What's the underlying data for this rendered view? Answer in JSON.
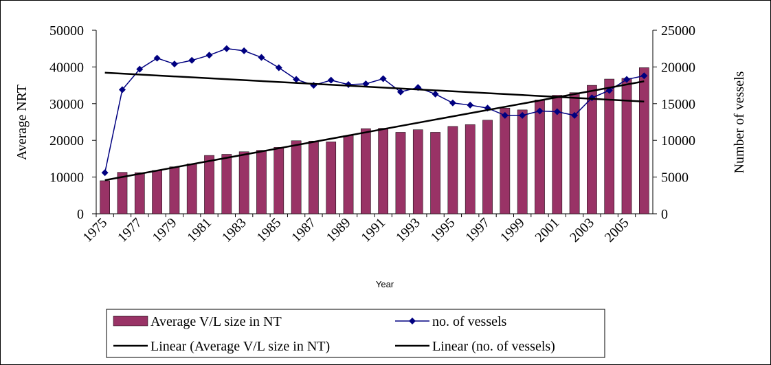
{
  "chart_data": {
    "type": "bar-line",
    "x_label": "Year",
    "y_label": "Average NRT",
    "y2_label": "Number of vessels",
    "categories": [
      "1975",
      null,
      "1977",
      null,
      "1979",
      null,
      "1981",
      null,
      "1983",
      null,
      "1985",
      null,
      "1987",
      null,
      "1989",
      null,
      "1991",
      null,
      "1993",
      null,
      "1995",
      null,
      "1997",
      null,
      "1999",
      null,
      "2001",
      null,
      "2003",
      null,
      "2005",
      null
    ],
    "series": [
      {
        "name": "Average V/L size in NT",
        "type": "bar",
        "color": "#993366",
        "axis": "y",
        "values": [
          9000,
          11300,
          11200,
          11800,
          12800,
          13600,
          15900,
          16200,
          16900,
          17300,
          18100,
          19900,
          19800,
          19600,
          21300,
          23200,
          23300,
          22200,
          22900,
          22200,
          23800,
          24300,
          25500,
          28800,
          28300,
          31000,
          32300,
          33000,
          35000,
          36700,
          36900,
          39800
        ]
      },
      {
        "name": "no. of vessels",
        "type": "line",
        "color": "#000080",
        "axis": "y2",
        "values": [
          5600,
          16900,
          19700,
          21200,
          20400,
          20900,
          21600,
          22500,
          22200,
          21300,
          19900,
          18300,
          17500,
          18200,
          17600,
          17700,
          18400,
          16600,
          17200,
          16300,
          15100,
          14800,
          14400,
          13400,
          13400,
          14000,
          13900,
          13400,
          15800,
          16800,
          18300,
          18800
        ]
      }
    ],
    "trendlines": [
      {
        "name": "Linear (Average V/L size in NT)",
        "color": "#000000"
      },
      {
        "name": "Linear (no. of vessels)",
        "color": "#000000"
      }
    ],
    "ylim": [
      0,
      50000
    ],
    "yticks": [
      0,
      10000,
      20000,
      30000,
      40000,
      50000
    ],
    "y2lim": [
      0,
      25000
    ],
    "y2ticks": [
      0,
      5000,
      10000,
      15000,
      20000,
      25000
    ]
  }
}
